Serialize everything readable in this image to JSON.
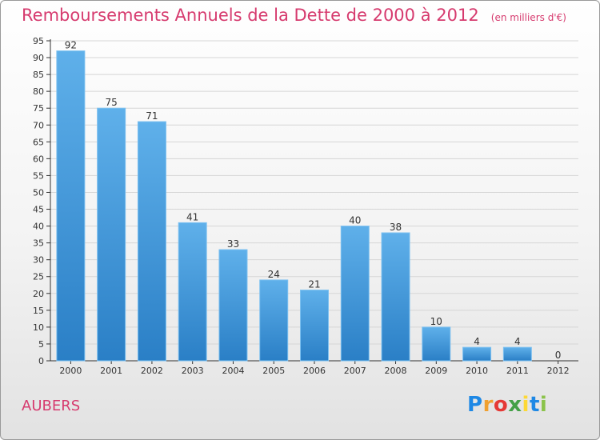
{
  "chart_data": {
    "type": "bar",
    "title": "Remboursements Annuels de la Dette de 2000 à 2012",
    "unit": "(en milliers d'€)",
    "categories": [
      "2000",
      "2001",
      "2002",
      "2003",
      "2004",
      "2005",
      "2006",
      "2007",
      "2008",
      "2009",
      "2010",
      "2011",
      "2012"
    ],
    "values": [
      92,
      75,
      71,
      41,
      33,
      24,
      21,
      40,
      38,
      10,
      4,
      4,
      0
    ],
    "ylim": [
      0,
      95
    ],
    "yticks": [
      0,
      5,
      10,
      15,
      20,
      25,
      30,
      35,
      40,
      45,
      50,
      55,
      60,
      65,
      70,
      75,
      80,
      85,
      90,
      95
    ],
    "grid": true,
    "bar_color": "#4a9de0"
  },
  "commune": "AUBERS",
  "logo": {
    "text": "Proxiti"
  }
}
